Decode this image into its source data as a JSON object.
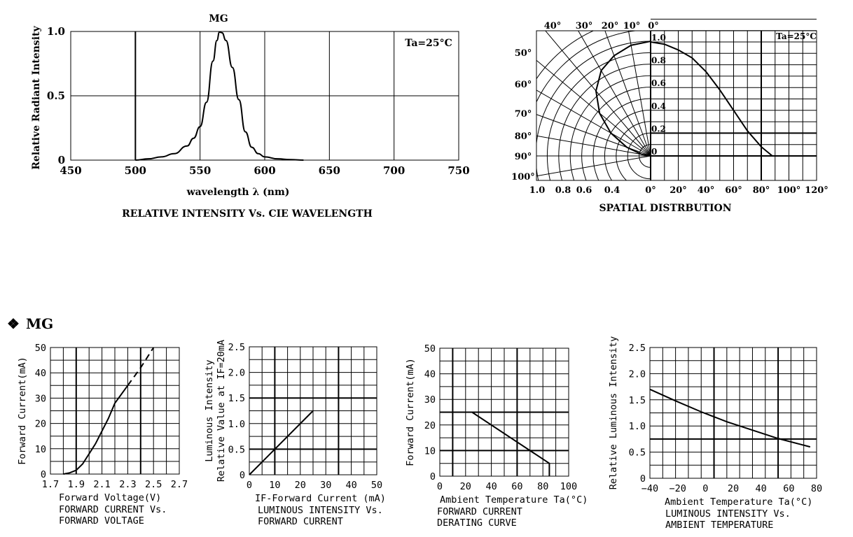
{
  "section_title": "MG",
  "section_marker": "❖",
  "chart_data": [
    {
      "id": "spectrum",
      "type": "line",
      "title": "RELATIVE INTENSITY Vs. CIE WAVELENGTH",
      "series_label": "MG",
      "annotation": "Ta=25°C",
      "xlabel": "wavelength λ (nm)",
      "ylabel": "Relative Radiant Intensity",
      "xlim": [
        450,
        750
      ],
      "ylim": [
        0,
        1.0
      ],
      "xticks": [
        "450",
        "500",
        "550",
        "600",
        "650",
        "700",
        "750"
      ],
      "yticks": [
        "0",
        "0.5",
        "1.0"
      ],
      "x": [
        500,
        510,
        520,
        530,
        540,
        545,
        550,
        555,
        560,
        563,
        565,
        567,
        570,
        575,
        580,
        585,
        590,
        595,
        600,
        610,
        620,
        630
      ],
      "y": [
        0,
        0.01,
        0.025,
        0.05,
        0.11,
        0.17,
        0.26,
        0.45,
        0.77,
        0.93,
        0.995,
        0.99,
        0.93,
        0.72,
        0.47,
        0.22,
        0.1,
        0.05,
        0.025,
        0.01,
        0.004,
        0
      ]
    },
    {
      "id": "spatial",
      "type": "line",
      "title": "SPATIAL DISTRBUTION",
      "annotation": "Ta=25°C",
      "angle_labels": [
        "40°",
        "30°",
        "20°",
        "10°",
        "0°",
        "50°",
        "60°",
        "70°",
        "80°",
        "90°",
        "100°"
      ],
      "radial_labels": [
        "1.0",
        "0.8",
        "0.6",
        "0.4"
      ],
      "rect_ylabels": [
        "1.0",
        "0.8",
        "0.6",
        "0.4",
        "0.2",
        "0"
      ],
      "xticks": [
        "0°",
        "20°",
        "40°",
        "60°",
        "80°",
        "100°",
        "120°"
      ],
      "x": [
        0,
        10,
        20,
        30,
        40,
        50,
        60,
        70,
        80,
        88
      ],
      "y": [
        1.0,
        0.98,
        0.93,
        0.86,
        0.74,
        0.58,
        0.4,
        0.22,
        0.08,
        0.0
      ]
    },
    {
      "id": "iv",
      "type": "line",
      "title_lines": [
        "FORWARD CURRENT Vs.",
        "FORWARD VOLTAGE"
      ],
      "xlabel": "Forward Voltage(V)",
      "ylabel": "Forward Current(mA)",
      "xlim": [
        1.7,
        2.7
      ],
      "ylim": [
        0,
        50
      ],
      "xticks": [
        "1.7",
        "1.9",
        "2.1",
        "2.3",
        "2.5",
        "2.7"
      ],
      "yticks": [
        "0",
        "10",
        "20",
        "30",
        "40",
        "50"
      ],
      "x": [
        1.8,
        1.85,
        1.9,
        1.95,
        2.0,
        2.05,
        2.1,
        2.15,
        2.2,
        2.3,
        2.4,
        2.5
      ],
      "y": [
        0,
        0.5,
        1.5,
        4,
        8,
        12,
        17,
        22,
        28,
        35,
        42,
        50
      ]
    },
    {
      "id": "li",
      "type": "line",
      "title_lines": [
        "LUMINOUS INTENSITY Vs.",
        "FORWARD CURRENT"
      ],
      "xlabel": "IF-Forward Current (mA)",
      "ylabel_lines": [
        "Luminous Intensity",
        "Relative Value at IF=20mA"
      ],
      "xlim": [
        0,
        50
      ],
      "ylim": [
        0,
        2.5
      ],
      "xticks": [
        "0",
        "10",
        "20",
        "30",
        "40",
        "50"
      ],
      "yticks": [
        "0",
        "0.5",
        "1.0",
        "1.5",
        "2.0",
        "2.5"
      ],
      "x": [
        0,
        25
      ],
      "y": [
        0,
        1.25
      ]
    },
    {
      "id": "derating",
      "type": "line",
      "title_lines": [
        "FORWARD CURRENT",
        "DERATING CURVE"
      ],
      "xlabel": "Ambient Temperature Ta(°C)",
      "ylabel": "Forward Current(mA)",
      "xlim": [
        0,
        100
      ],
      "ylim": [
        0,
        50
      ],
      "xticks": [
        "0",
        "20",
        "40",
        "60",
        "80",
        "100"
      ],
      "yticks": [
        "0",
        "10",
        "20",
        "30",
        "40",
        "50"
      ],
      "x": [
        0,
        25,
        85,
        85
      ],
      "y": [
        25,
        25,
        5,
        0
      ]
    },
    {
      "id": "temp",
      "type": "line",
      "title_lines": [
        "LUMINOUS INTENSITY Vs.",
        "AMBIENT TEMPERATURE"
      ],
      "xlabel": "Ambient Temperature Ta(°C)",
      "ylabel": "Relative Luminous Intensity",
      "xlim": [
        -40,
        90
      ],
      "ylim": [
        0,
        2.5
      ],
      "xticks": [
        "−40",
        "−20",
        "0",
        "20",
        "40",
        "60",
        "80"
      ],
      "yticks": [
        "0",
        "0.5",
        "1.0",
        "1.5",
        "2.0",
        "2.5"
      ],
      "x": [
        -40,
        -20,
        0,
        20,
        40,
        60,
        85
      ],
      "y": [
        1.7,
        1.48,
        1.27,
        1.08,
        0.92,
        0.76,
        0.6
      ]
    }
  ]
}
